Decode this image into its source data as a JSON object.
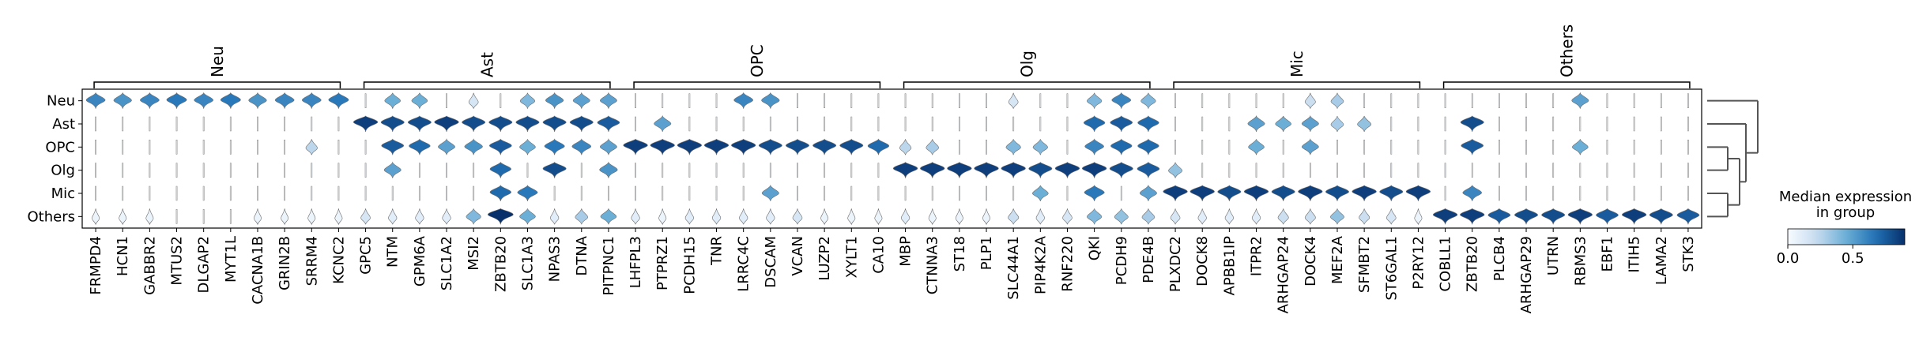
{
  "chart_data": {
    "type": "stacked_violin",
    "rows": [
      "Neu",
      "Ast",
      "OPC",
      "Olg",
      "Mic",
      "Others"
    ],
    "groups": [
      {
        "name": "Neu",
        "genes": [
          "FRMPD4",
          "HCN1",
          "GABBR2",
          "MTUS2",
          "DLGAP2",
          "MYT1L",
          "CACNA1B",
          "GRIN2B",
          "SRRM4",
          "KCNC2"
        ]
      },
      {
        "name": "Ast",
        "genes": [
          "GPC5",
          "NTM",
          "GPM6A",
          "SLC1A2",
          "MSI2",
          "ZBTB20",
          "SLC1A3",
          "NPAS3",
          "DTNA",
          "PITPNC1"
        ]
      },
      {
        "name": "OPC",
        "genes": [
          "LHFPL3",
          "PTPRZ1",
          "PCDH15",
          "TNR",
          "LRRC4C",
          "DSCAM",
          "VCAN",
          "LUZP2",
          "XYLT1",
          "CA10"
        ]
      },
      {
        "name": "Olg",
        "genes": [
          "MBP",
          "CTNNA3",
          "ST18",
          "PLP1",
          "SLC44A1",
          "PIP4K2A",
          "RNF220",
          "QKI",
          "PCDH9",
          "PDE4B"
        ]
      },
      {
        "name": "Mic",
        "genes": [
          "PLXDC2",
          "DOCK8",
          "APBB1IP",
          "ITPR2",
          "ARHGAP24",
          "DOCK4",
          "MEF2A",
          "SFMBT2",
          "ST6GAL1",
          "P2RY12"
        ]
      },
      {
        "name": "Others",
        "genes": [
          "COBLL1",
          "ZBTB20",
          "PLCB4",
          "ARHGAP29",
          "UTRN",
          "RBMS3",
          "EBF1",
          "ITIH5",
          "LAMA2",
          "STK3"
        ]
      }
    ],
    "median_expression": [
      [
        0.6,
        0.55,
        0.6,
        0.65,
        0.6,
        0.65,
        0.55,
        0.6,
        0.6,
        0.65,
        0.0,
        0.45,
        0.45,
        0.0,
        0.15,
        0.0,
        0.4,
        0.55,
        0.5,
        0.5,
        0.0,
        0.0,
        0.0,
        0.0,
        0.6,
        0.55,
        0.0,
        0.0,
        0.0,
        0.0,
        0.0,
        0.0,
        0.0,
        0.0,
        0.15,
        0.0,
        0.0,
        0.4,
        0.6,
        0.4,
        0.0,
        0.0,
        0.0,
        0.0,
        0.0,
        0.2,
        0.3,
        0.0,
        0.0,
        0.0,
        0.0,
        0.0,
        0.0,
        0.0,
        0.0,
        0.5,
        0.0,
        0.0,
        0.0,
        0.0
      ],
      [
        0.0,
        0.0,
        0.0,
        0.0,
        0.0,
        0.0,
        0.0,
        0.0,
        0.0,
        0.0,
        0.85,
        0.8,
        0.8,
        0.85,
        0.8,
        0.8,
        0.8,
        0.8,
        0.8,
        0.75,
        0.0,
        0.5,
        0.0,
        0.0,
        0.0,
        0.0,
        0.0,
        0.0,
        0.0,
        0.0,
        0.0,
        0.0,
        0.0,
        0.0,
        0.0,
        0.0,
        0.0,
        0.7,
        0.75,
        0.7,
        0.0,
        0.0,
        0.0,
        0.5,
        0.45,
        0.5,
        0.3,
        0.35,
        0.0,
        0.0,
        0.0,
        0.8,
        0.0,
        0.0,
        0.0,
        0.0,
        0.0,
        0.0,
        0.0,
        0.0
      ],
      [
        0.0,
        0.0,
        0.0,
        0.0,
        0.0,
        0.0,
        0.0,
        0.0,
        0.25,
        0.0,
        0.0,
        0.75,
        0.7,
        0.5,
        0.55,
        0.75,
        0.45,
        0.65,
        0.6,
        0.5,
        0.85,
        0.85,
        0.85,
        0.85,
        0.85,
        0.8,
        0.8,
        0.8,
        0.8,
        0.7,
        0.25,
        0.3,
        0.0,
        0.0,
        0.4,
        0.4,
        0.0,
        0.6,
        0.7,
        0.7,
        0.0,
        0.0,
        0.0,
        0.45,
        0.0,
        0.5,
        0.0,
        0.0,
        0.0,
        0.0,
        0.0,
        0.75,
        0.0,
        0.0,
        0.0,
        0.45,
        0.0,
        0.0,
        0.0,
        0.0
      ],
      [
        0.0,
        0.0,
        0.0,
        0.0,
        0.0,
        0.0,
        0.0,
        0.0,
        0.0,
        0.0,
        0.0,
        0.5,
        0.0,
        0.0,
        0.0,
        0.7,
        0.0,
        0.8,
        0.0,
        0.55,
        0.0,
        0.0,
        0.0,
        0.0,
        0.0,
        0.0,
        0.0,
        0.0,
        0.0,
        0.0,
        0.85,
        0.85,
        0.85,
        0.85,
        0.85,
        0.8,
        0.85,
        0.85,
        0.8,
        0.75,
        0.35,
        0.0,
        0.0,
        0.0,
        0.0,
        0.0,
        0.0,
        0.0,
        0.0,
        0.0,
        0.0,
        0.0,
        0.0,
        0.0,
        0.0,
        0.0,
        0.0,
        0.0,
        0.0,
        0.0
      ],
      [
        0.0,
        0.0,
        0.0,
        0.0,
        0.0,
        0.0,
        0.0,
        0.0,
        0.0,
        0.0,
        0.0,
        0.0,
        0.0,
        0.0,
        0.0,
        0.7,
        0.65,
        0.0,
        0.0,
        0.0,
        0.0,
        0.0,
        0.0,
        0.0,
        0.0,
        0.5,
        0.0,
        0.0,
        0.0,
        0.0,
        0.0,
        0.0,
        0.0,
        0.0,
        0.0,
        0.45,
        0.0,
        0.65,
        0.0,
        0.5,
        0.85,
        0.85,
        0.8,
        0.85,
        0.8,
        0.85,
        0.8,
        0.85,
        0.8,
        0.85,
        0.0,
        0.6,
        0.0,
        0.0,
        0.0,
        0.0,
        0.0,
        0.0,
        0.0,
        0.0
      ],
      [
        0.05,
        0.05,
        0.05,
        0.0,
        0.0,
        0.0,
        0.05,
        0.05,
        0.05,
        0.05,
        0.15,
        0.1,
        0.1,
        0.1,
        0.4,
        0.9,
        0.45,
        0.1,
        0.3,
        0.45,
        0.1,
        0.05,
        0.1,
        0.1,
        0.1,
        0.1,
        0.15,
        0.05,
        0.05,
        0.05,
        0.1,
        0.05,
        0.05,
        0.05,
        0.2,
        0.1,
        0.15,
        0.4,
        0.35,
        0.3,
        0.15,
        0.1,
        0.1,
        0.1,
        0.2,
        0.2,
        0.35,
        0.2,
        0.15,
        0.05,
        0.85,
        0.85,
        0.75,
        0.8,
        0.8,
        0.85,
        0.75,
        0.85,
        0.8,
        0.75
      ]
    ],
    "dendrogram": "Neu | (Ast | ((OPC | Olg) | (Mic | Others)))",
    "colorbar": {
      "title": "Median expression\nin group",
      "ticks": [
        "0.0",
        "0.5"
      ],
      "range": [
        0,
        0.9
      ],
      "cmap": "Blues"
    }
  }
}
